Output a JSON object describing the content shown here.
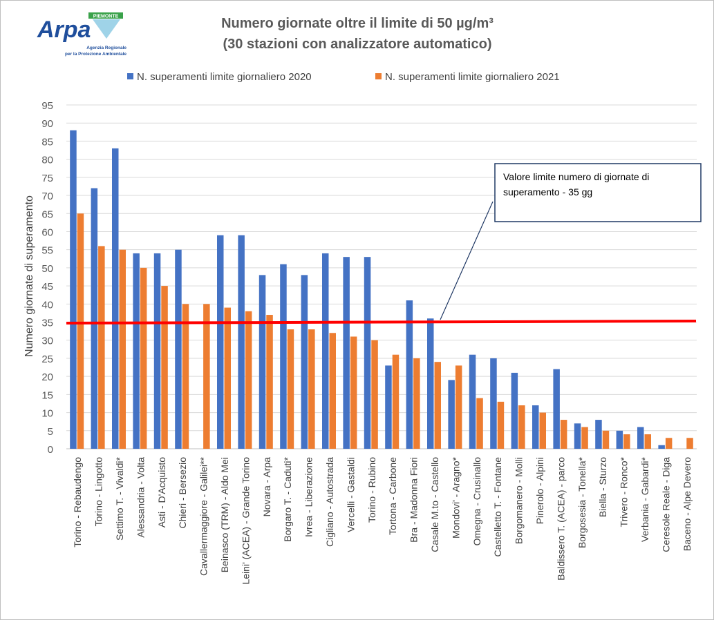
{
  "logo": {
    "text": "Arpa",
    "badge": "PIEMONTE",
    "subtitle_1": "Agenzia Regionale",
    "subtitle_2": "per la Protezione Ambientale"
  },
  "chart_data": {
    "type": "bar",
    "title_line1": "Numero giornate oltre il limite di 50 µg/m³",
    "title_line2": "(30 stazioni con analizzatore automatico)",
    "ylabel": "Numero giornate di superamento",
    "xlabel": "",
    "ylim": [
      0,
      95
    ],
    "yticks": [
      0,
      5,
      10,
      15,
      20,
      25,
      30,
      35,
      40,
      45,
      50,
      55,
      60,
      65,
      70,
      75,
      80,
      85,
      90,
      95
    ],
    "grid": true,
    "legend_placement": "top",
    "categories": [
      "Torino - Rebaudengo",
      "Torino - Lingotto",
      "Settimo T. - Vivaldi*",
      "Alessandria - Volta",
      "Asti - D'Acquisto",
      "Chieri - Bersezio",
      "Cavallermaggiore - Galilei**",
      "Beinasco (TRM) - Aldo Mei",
      "Leini' (ACEA) - Grande Torino",
      "Novara - Arpa",
      "Borgaro T. - Caduti*",
      "Ivrea - Liberazione",
      "Cigliano - Autostrada",
      "Vercelli - Gastaldi",
      "Torino - Rubino",
      "Tortona - Carbone",
      "Bra - Madonna Fiori",
      "Casale M.to - Castello",
      "Mondovi' - Aragno*",
      "Omegna - Crusinallo",
      "Castelletto T. - Fontane",
      "Borgomanero - Molli",
      "Pinerolo - Alpini",
      "Baldissero T. (ACEA) - parco",
      "Borgosesia - Tonella*",
      "Biella - Sturzo",
      "Trivero - Ronco*",
      "Verbania - Gabardi*",
      "Ceresole Reale - Diga",
      "Baceno - Alpe Devero"
    ],
    "series": [
      {
        "name": "N. superamenti limite giornaliero 2020",
        "color": "#4472c4",
        "values": [
          88,
          72,
          83,
          54,
          54,
          55,
          null,
          59,
          59,
          48,
          51,
          48,
          54,
          53,
          53,
          23,
          41,
          36,
          19,
          26,
          25,
          21,
          12,
          22,
          7,
          8,
          5,
          6,
          1,
          null
        ]
      },
      {
        "name": "N. superamenti  limite giornaliero 2021",
        "color": "#ed7d31",
        "values": [
          65,
          56,
          55,
          50,
          45,
          40,
          40,
          39,
          38,
          37,
          33,
          33,
          32,
          31,
          30,
          26,
          25,
          24,
          23,
          14,
          13,
          12,
          10,
          8,
          6,
          5,
          4,
          4,
          3,
          3
        ]
      }
    ],
    "reference_line": {
      "value": 35,
      "color": "#ff0000"
    },
    "annotation": {
      "line1": "Valore limite numero di giornate di",
      "line2": "superamento - 35 gg"
    }
  }
}
